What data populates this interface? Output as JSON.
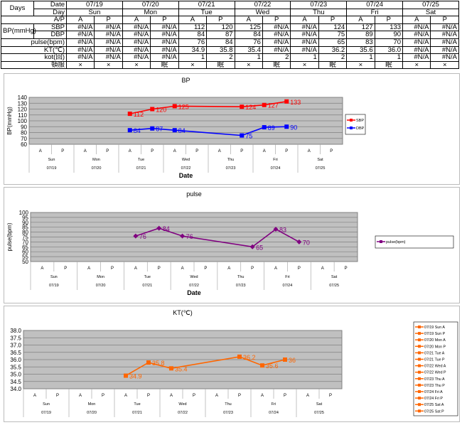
{
  "table": {
    "days_label": "Days",
    "date_label": "Date",
    "day_label": "Day",
    "ap_label": "A/P",
    "bp_label": "BP(mmHg)",
    "sbp_label": "SBP",
    "dbp_label": "DBP",
    "pulse_label": "pulse(bpm)",
    "kt_label": "KT(℃)",
    "kot_label": "kot(回)",
    "prn_label": "頓服",
    "dates": [
      "07/19",
      "07/20",
      "07/21",
      "07/22",
      "07/23",
      "07/24",
      "07/25"
    ],
    "days": [
      "Sun",
      "Mon",
      "Tue",
      "Wed",
      "Thu",
      "Fri",
      "Sat"
    ],
    "ap": [
      "A",
      "P",
      "A",
      "P",
      "A",
      "P",
      "A",
      "P",
      "A",
      "P",
      "A",
      "P",
      "A",
      "P"
    ],
    "sbp": [
      "#N/A",
      "#N/A",
      "#N/A",
      "#N/A",
      "112",
      "120",
      "125",
      "#N/A",
      "#N/A",
      "124",
      "127",
      "133",
      "#N/A",
      "#N/A"
    ],
    "dbp": [
      "#N/A",
      "#N/A",
      "#N/A",
      "#N/A",
      "84",
      "87",
      "84",
      "#N/A",
      "#N/A",
      "75",
      "89",
      "90",
      "#N/A",
      "#N/A"
    ],
    "pulse": [
      "#N/A",
      "#N/A",
      "#N/A",
      "#N/A",
      "76",
      "84",
      "76",
      "#N/A",
      "#N/A",
      "65",
      "83",
      "70",
      "#N/A",
      "#N/A"
    ],
    "kt": [
      "#N/A",
      "#N/A",
      "#N/A",
      "#N/A",
      "34.9",
      "35.8",
      "35.4",
      "#N/A",
      "#N/A",
      "36.2",
      "35.6",
      "36.0",
      "#N/A",
      "#N/A"
    ],
    "kot": [
      "#N/A",
      "#N/A",
      "#N/A",
      "#N/A",
      "1",
      "2",
      "1",
      "2",
      "1",
      "2",
      "1",
      "1",
      "#N/A",
      "#N/A"
    ],
    "prn": [
      "×",
      "×",
      "×",
      "眠",
      "×",
      "眠",
      "×",
      "眠",
      "×",
      "眠",
      "×",
      "眠",
      "×",
      "×"
    ]
  },
  "chart_data": [
    {
      "type": "line",
      "title": "BP",
      "ylabel": "BP(mmHg)",
      "xlabel": "Date",
      "ylim": [
        60,
        140
      ],
      "ystep": 10,
      "ydec": 0,
      "categories_ap": [
        "A",
        "P"
      ],
      "categories_day": [
        "Sun",
        "Mon",
        "Tue",
        "Wed",
        "Thu",
        "Fri",
        "Sat"
      ],
      "categories_date": [
        "07/19",
        "07/20",
        "07/21",
        "07/22",
        "07/23",
        "07/24",
        "07/25"
      ],
      "series": [
        {
          "name": "SBP",
          "color": "#ff0000",
          "marker": "square",
          "values": [
            null,
            null,
            null,
            null,
            112,
            120,
            125,
            null,
            null,
            124,
            127,
            133,
            null,
            null
          ]
        },
        {
          "name": "DBP",
          "color": "#0000ff",
          "marker": "square",
          "values": [
            null,
            null,
            null,
            null,
            84,
            87,
            84,
            null,
            null,
            75,
            89,
            90,
            null,
            null
          ]
        }
      ]
    },
    {
      "type": "line",
      "title": "pulse",
      "ylabel": "pulse(bpm)",
      "xlabel": "Date",
      "ylim": [
        50,
        100
      ],
      "ystep": 5,
      "ydec": 0,
      "categories_ap": [
        "A",
        "P"
      ],
      "categories_day": [
        "Sun",
        "Mon",
        "Tue",
        "Wed",
        "Thu",
        "Fri",
        "Sat"
      ],
      "categories_date": [
        "07/19",
        "07/20",
        "07/21",
        "07/22",
        "07/23",
        "07/24",
        "07/25"
      ],
      "series": [
        {
          "name": "pulse(bpm)",
          "color": "#800080",
          "marker": "diamond",
          "values": [
            null,
            null,
            null,
            null,
            76,
            84,
            76,
            null,
            null,
            65,
            83,
            70,
            null,
            null
          ]
        }
      ]
    },
    {
      "type": "line",
      "title": "KT(℃)",
      "ylabel": "",
      "xlabel": "",
      "ylim": [
        34,
        38
      ],
      "ystep": 0.5,
      "ydec": 1,
      "categories_ap": [
        "A",
        "P"
      ],
      "categories_day": [
        "Sun",
        "Mon",
        "Tue",
        "Wed",
        "Thu",
        "Fri",
        "Sat"
      ],
      "categories_date": [
        "07/19",
        "07/20",
        "07/21",
        "07/22",
        "07/23",
        "07/24",
        "07/25"
      ],
      "legend_entries": [
        "07/19 Sun A",
        "07/19 Sun P",
        "07/20 Mon A",
        "07/20 Mon P",
        "07/21 Tue A",
        "07/21 Tue P",
        "07/22 Wed A",
        "07/22 Wed P",
        "07/23 Thu A",
        "07/23 Thu P",
        "07/24 Fri A",
        "07/24 Fri P",
        "07/25 Sat A",
        "07/25 Sat P"
      ],
      "series": [
        {
          "name": "KT",
          "color": "#ff6600",
          "marker": "square",
          "values": [
            null,
            null,
            null,
            null,
            34.9,
            35.8,
            35.4,
            null,
            null,
            36.2,
            35.6,
            36.0,
            null,
            null
          ]
        }
      ]
    }
  ]
}
